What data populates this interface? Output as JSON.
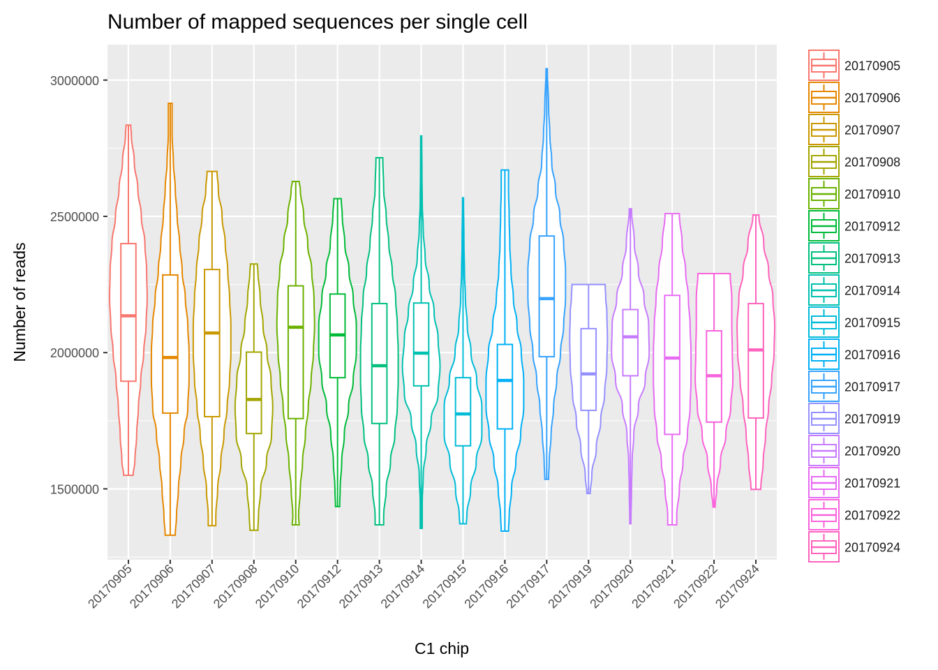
{
  "chart_data": {
    "type": "violin",
    "title": "Number of mapped sequences per single cell",
    "xlabel": "C1 chip",
    "ylabel": "Number of reads",
    "ylim": [
      1240000,
      3130000
    ],
    "yticks": [
      1500000,
      2000000,
      2500000,
      3000000
    ],
    "ytick_labels": [
      "1500000",
      "2000000",
      "2500000",
      "3000000"
    ],
    "legend_position": "right",
    "grid": true,
    "categories": [
      "20170905",
      "20170906",
      "20170907",
      "20170908",
      "20170910",
      "20170912",
      "20170913",
      "20170914",
      "20170915",
      "20170916",
      "20170917",
      "20170919",
      "20170920",
      "20170921",
      "20170922",
      "20170924"
    ],
    "series": [
      {
        "name": "20170905",
        "color": "#F8766D",
        "min": 1550000,
        "max": 2835000,
        "q1": 1895000,
        "median": 2135000,
        "q3": 2400000,
        "maxWidth": 0.9,
        "profile": [
          [
            1550000,
            0.08
          ],
          [
            1600000,
            0.11
          ],
          [
            1700000,
            0.14
          ],
          [
            1800000,
            0.17
          ],
          [
            1900000,
            0.21
          ],
          [
            2000000,
            0.26
          ],
          [
            2100000,
            0.3
          ],
          [
            2200000,
            0.32
          ],
          [
            2300000,
            0.31
          ],
          [
            2400000,
            0.28
          ],
          [
            2500000,
            0.22
          ],
          [
            2600000,
            0.16
          ],
          [
            2700000,
            0.1
          ],
          [
            2800000,
            0.05
          ],
          [
            2835000,
            0.04
          ]
        ]
      },
      {
        "name": "20170906",
        "color": "#E58700",
        "min": 1330000,
        "max": 2915000,
        "q1": 1778000,
        "median": 1982000,
        "q3": 2285000,
        "maxWidth": 0.9,
        "profile": [
          [
            1330000,
            0.08
          ],
          [
            1400000,
            0.1
          ],
          [
            1500000,
            0.13
          ],
          [
            1600000,
            0.17
          ],
          [
            1700000,
            0.22
          ],
          [
            1800000,
            0.28
          ],
          [
            1900000,
            0.3
          ],
          [
            2000000,
            0.3
          ],
          [
            2100000,
            0.28
          ],
          [
            2200000,
            0.24
          ],
          [
            2300000,
            0.19
          ],
          [
            2400000,
            0.15
          ],
          [
            2500000,
            0.11
          ],
          [
            2600000,
            0.08
          ],
          [
            2700000,
            0.05
          ],
          [
            2800000,
            0.03
          ],
          [
            2915000,
            0.03
          ]
        ]
      },
      {
        "name": "20170907",
        "color": "#C99800",
        "min": 1365000,
        "max": 2665000,
        "q1": 1765000,
        "median": 2072000,
        "q3": 2305000,
        "maxWidth": 0.9,
        "profile": [
          [
            1365000,
            0.06
          ],
          [
            1400000,
            0.06
          ],
          [
            1500000,
            0.09
          ],
          [
            1600000,
            0.14
          ],
          [
            1700000,
            0.19
          ],
          [
            1800000,
            0.24
          ],
          [
            1900000,
            0.28
          ],
          [
            2000000,
            0.3
          ],
          [
            2100000,
            0.3
          ],
          [
            2200000,
            0.28
          ],
          [
            2300000,
            0.25
          ],
          [
            2400000,
            0.21
          ],
          [
            2500000,
            0.16
          ],
          [
            2600000,
            0.1
          ],
          [
            2665000,
            0.08
          ]
        ]
      },
      {
        "name": "20170908",
        "color": "#A3A500",
        "min": 1348000,
        "max": 2325000,
        "q1": 1703000,
        "median": 1828000,
        "q3": 2002000,
        "maxWidth": 0.9,
        "profile": [
          [
            1348000,
            0.07
          ],
          [
            1400000,
            0.08
          ],
          [
            1500000,
            0.12
          ],
          [
            1600000,
            0.22
          ],
          [
            1700000,
            0.31
          ],
          [
            1800000,
            0.33
          ],
          [
            1900000,
            0.3
          ],
          [
            2000000,
            0.23
          ],
          [
            2100000,
            0.16
          ],
          [
            2200000,
            0.11
          ],
          [
            2300000,
            0.07
          ],
          [
            2325000,
            0.06
          ]
        ]
      },
      {
        "name": "20170910",
        "color": "#6BB100",
        "min": 1368000,
        "max": 2628000,
        "q1": 1758000,
        "median": 2093000,
        "q3": 2245000,
        "maxWidth": 0.9,
        "profile": [
          [
            1368000,
            0.06
          ],
          [
            1400000,
            0.05
          ],
          [
            1500000,
            0.08
          ],
          [
            1600000,
            0.12
          ],
          [
            1700000,
            0.17
          ],
          [
            1800000,
            0.22
          ],
          [
            1900000,
            0.27
          ],
          [
            2000000,
            0.31
          ],
          [
            2100000,
            0.33
          ],
          [
            2200000,
            0.32
          ],
          [
            2300000,
            0.28
          ],
          [
            2400000,
            0.21
          ],
          [
            2500000,
            0.14
          ],
          [
            2600000,
            0.08
          ],
          [
            2628000,
            0.06
          ]
        ]
      },
      {
        "name": "20170912",
        "color": "#00BA38",
        "min": 1435000,
        "max": 2565000,
        "q1": 1908000,
        "median": 2065000,
        "q3": 2215000,
        "maxWidth": 0.9,
        "profile": [
          [
            1435000,
            0.04
          ],
          [
            1500000,
            0.05
          ],
          [
            1600000,
            0.08
          ],
          [
            1700000,
            0.13
          ],
          [
            1800000,
            0.21
          ],
          [
            1900000,
            0.3
          ],
          [
            2000000,
            0.36
          ],
          [
            2100000,
            0.36
          ],
          [
            2200000,
            0.3
          ],
          [
            2300000,
            0.22
          ],
          [
            2400000,
            0.14
          ],
          [
            2500000,
            0.09
          ],
          [
            2565000,
            0.07
          ]
        ]
      },
      {
        "name": "20170913",
        "color": "#00BF7D",
        "min": 1368000,
        "max": 2715000,
        "q1": 1740000,
        "median": 1952000,
        "q3": 2180000,
        "maxWidth": 0.9,
        "profile": [
          [
            1368000,
            0.05
          ],
          [
            1400000,
            0.05
          ],
          [
            1500000,
            0.08
          ],
          [
            1600000,
            0.13
          ],
          [
            1700000,
            0.18
          ],
          [
            1800000,
            0.21
          ],
          [
            1900000,
            0.22
          ],
          [
            2000000,
            0.22
          ],
          [
            2100000,
            0.21
          ],
          [
            2200000,
            0.19
          ],
          [
            2300000,
            0.15
          ],
          [
            2400000,
            0.11
          ],
          [
            2500000,
            0.08
          ],
          [
            2600000,
            0.05
          ],
          [
            2715000,
            0.04
          ]
        ]
      },
      {
        "name": "20170914",
        "color": "#00C0AF",
        "min": 1355000,
        "max": 2795000,
        "q1": 1878000,
        "median": 1998000,
        "q3": 2182000,
        "maxWidth": 0.9,
        "profile": [
          [
            1355000,
            0.02
          ],
          [
            1450000,
            0.02
          ],
          [
            1550000,
            0.04
          ],
          [
            1650000,
            0.1
          ],
          [
            1750000,
            0.2
          ],
          [
            1850000,
            0.34
          ],
          [
            1950000,
            0.38
          ],
          [
            2050000,
            0.34
          ],
          [
            2150000,
            0.26
          ],
          [
            2250000,
            0.16
          ],
          [
            2350000,
            0.08
          ],
          [
            2450000,
            0.04
          ],
          [
            2550000,
            0.02
          ],
          [
            2650000,
            0.015
          ],
          [
            2795000,
            0.01
          ]
        ]
      },
      {
        "name": "20170915",
        "color": "#00BCD8",
        "min": 1372000,
        "max": 2568000,
        "q1": 1658000,
        "median": 1775000,
        "q3": 1908000,
        "maxWidth": 0.9,
        "profile": [
          [
            1372000,
            0.07
          ],
          [
            1400000,
            0.08
          ],
          [
            1500000,
            0.16
          ],
          [
            1600000,
            0.28
          ],
          [
            1700000,
            0.4
          ],
          [
            1800000,
            0.4
          ],
          [
            1900000,
            0.29
          ],
          [
            2000000,
            0.17
          ],
          [
            2100000,
            0.09
          ],
          [
            2200000,
            0.05
          ],
          [
            2300000,
            0.03
          ],
          [
            2400000,
            0.02
          ],
          [
            2568000,
            0.01
          ]
        ]
      },
      {
        "name": "20170916",
        "color": "#00B0F6",
        "min": 1345000,
        "max": 2670000,
        "q1": 1720000,
        "median": 1898000,
        "q3": 2030000,
        "maxWidth": 0.9,
        "profile": [
          [
            1345000,
            0.06
          ],
          [
            1400000,
            0.07
          ],
          [
            1500000,
            0.11
          ],
          [
            1600000,
            0.18
          ],
          [
            1700000,
            0.26
          ],
          [
            1800000,
            0.31
          ],
          [
            1900000,
            0.31
          ],
          [
            2000000,
            0.27
          ],
          [
            2100000,
            0.2
          ],
          [
            2200000,
            0.14
          ],
          [
            2300000,
            0.1
          ],
          [
            2400000,
            0.08
          ],
          [
            2500000,
            0.07
          ],
          [
            2600000,
            0.06
          ],
          [
            2670000,
            0.06
          ]
        ]
      },
      {
        "name": "20170917",
        "color": "#35A2FF",
        "min": 1535000,
        "max": 3042000,
        "q1": 1985000,
        "median": 2198000,
        "q3": 2428000,
        "maxWidth": 0.9,
        "profile": [
          [
            1535000,
            0.03
          ],
          [
            1600000,
            0.04
          ],
          [
            1700000,
            0.07
          ],
          [
            1800000,
            0.11
          ],
          [
            1900000,
            0.16
          ],
          [
            2000000,
            0.22
          ],
          [
            2100000,
            0.27
          ],
          [
            2200000,
            0.3
          ],
          [
            2300000,
            0.3
          ],
          [
            2400000,
            0.27
          ],
          [
            2500000,
            0.21
          ],
          [
            2600000,
            0.14
          ],
          [
            2700000,
            0.08
          ],
          [
            2800000,
            0.05
          ],
          [
            2900000,
            0.03
          ],
          [
            3042000,
            0.01
          ]
        ]
      },
      {
        "name": "20170919",
        "color": "#9590FF",
        "min": 1483000,
        "max": 2250000,
        "q1": 1788000,
        "median": 1922000,
        "q3": 2088000,
        "maxWidth": 0.9,
        "profile": [
          [
            1483000,
            0.03
          ],
          [
            1550000,
            0.06
          ],
          [
            1650000,
            0.14
          ],
          [
            1750000,
            0.22
          ],
          [
            1850000,
            0.29
          ],
          [
            1950000,
            0.33
          ],
          [
            2050000,
            0.34
          ],
          [
            2150000,
            0.33
          ],
          [
            2200000,
            0.31
          ],
          [
            2250000,
            0.3
          ]
        ]
      },
      {
        "name": "20170920",
        "color": "#C77CFF",
        "min": 1372000,
        "max": 2528000,
        "q1": 1915000,
        "median": 2058000,
        "q3": 2158000,
        "maxWidth": 0.9,
        "profile": [
          [
            1372000,
            0.01
          ],
          [
            1500000,
            0.02
          ],
          [
            1600000,
            0.03
          ],
          [
            1700000,
            0.06
          ],
          [
            1800000,
            0.14
          ],
          [
            1900000,
            0.26
          ],
          [
            2000000,
            0.33
          ],
          [
            2100000,
            0.32
          ],
          [
            2200000,
            0.24
          ],
          [
            2300000,
            0.14
          ],
          [
            2400000,
            0.07
          ],
          [
            2528000,
            0.02
          ]
        ]
      },
      {
        "name": "20170921",
        "color": "#E76BF3",
        "min": 1368000,
        "max": 2510000,
        "q1": 1700000,
        "median": 1980000,
        "q3": 2210000,
        "maxWidth": 0.9,
        "profile": [
          [
            1368000,
            0.05
          ],
          [
            1400000,
            0.05
          ],
          [
            1500000,
            0.08
          ],
          [
            1600000,
            0.12
          ],
          [
            1700000,
            0.17
          ],
          [
            1800000,
            0.2
          ],
          [
            1900000,
            0.21
          ],
          [
            2000000,
            0.21
          ],
          [
            2100000,
            0.2
          ],
          [
            2200000,
            0.18
          ],
          [
            2300000,
            0.15
          ],
          [
            2400000,
            0.11
          ],
          [
            2510000,
            0.08
          ]
        ]
      },
      {
        "name": "20170922",
        "color": "#FA62DB",
        "min": 1433000,
        "max": 2290000,
        "q1": 1745000,
        "median": 1915000,
        "q3": 2080000,
        "maxWidth": 0.9,
        "profile": [
          [
            1433000,
            0.02
          ],
          [
            1500000,
            0.05
          ],
          [
            1600000,
            0.12
          ],
          [
            1700000,
            0.22
          ],
          [
            1800000,
            0.31
          ],
          [
            1900000,
            0.35
          ],
          [
            2000000,
            0.34
          ],
          [
            2100000,
            0.33
          ],
          [
            2200000,
            0.33
          ],
          [
            2290000,
            0.3
          ]
        ]
      },
      {
        "name": "20170924",
        "color": "#FF62BC",
        "min": 1498000,
        "max": 2505000,
        "q1": 1760000,
        "median": 2010000,
        "q3": 2180000,
        "maxWidth": 0.9,
        "profile": [
          [
            1498000,
            0.08
          ],
          [
            1600000,
            0.12
          ],
          [
            1700000,
            0.16
          ],
          [
            1800000,
            0.21
          ],
          [
            1900000,
            0.26
          ],
          [
            2000000,
            0.3
          ],
          [
            2100000,
            0.31
          ],
          [
            2200000,
            0.28
          ],
          [
            2300000,
            0.21
          ],
          [
            2400000,
            0.13
          ],
          [
            2505000,
            0.05
          ]
        ]
      }
    ]
  }
}
